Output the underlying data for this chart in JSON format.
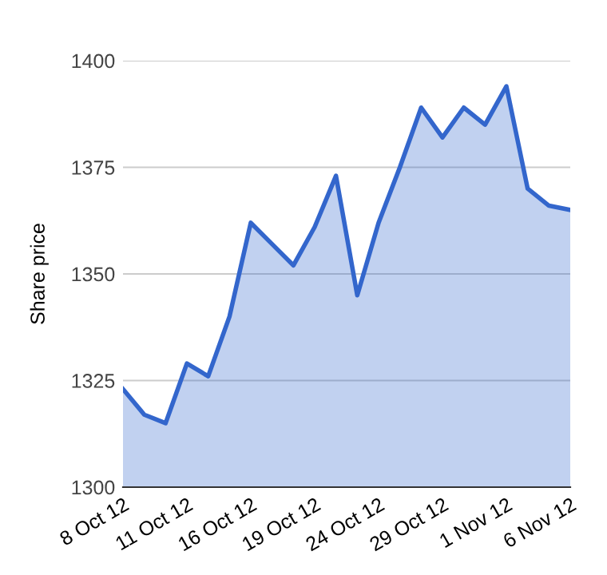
{
  "chart_data": {
    "type": "area",
    "ylabel": "Share price",
    "categories": [
      "8 Oct 12",
      null,
      null,
      "11 Oct 12",
      null,
      null,
      "16 Oct 12",
      null,
      null,
      "19 Oct 12",
      null,
      null,
      "24 Oct 12",
      null,
      null,
      "29 Oct 12",
      null,
      null,
      "1 Nov 12",
      null,
      null,
      "6 Nov 12"
    ],
    "series": [
      {
        "color": "#3366cc",
        "values": [
          1323,
          1317,
          1315,
          1329,
          1326,
          1340,
          1362,
          1357,
          1352,
          1361,
          1373,
          1345,
          1362,
          1375,
          1389,
          1382,
          1389,
          1385,
          1394,
          1370,
          1366,
          1365
        ]
      }
    ],
    "ylim": [
      1300,
      1400
    ],
    "yticks": [
      1300,
      1325,
      1350,
      1375,
      1400
    ],
    "grid": "y",
    "legend": false
  }
}
